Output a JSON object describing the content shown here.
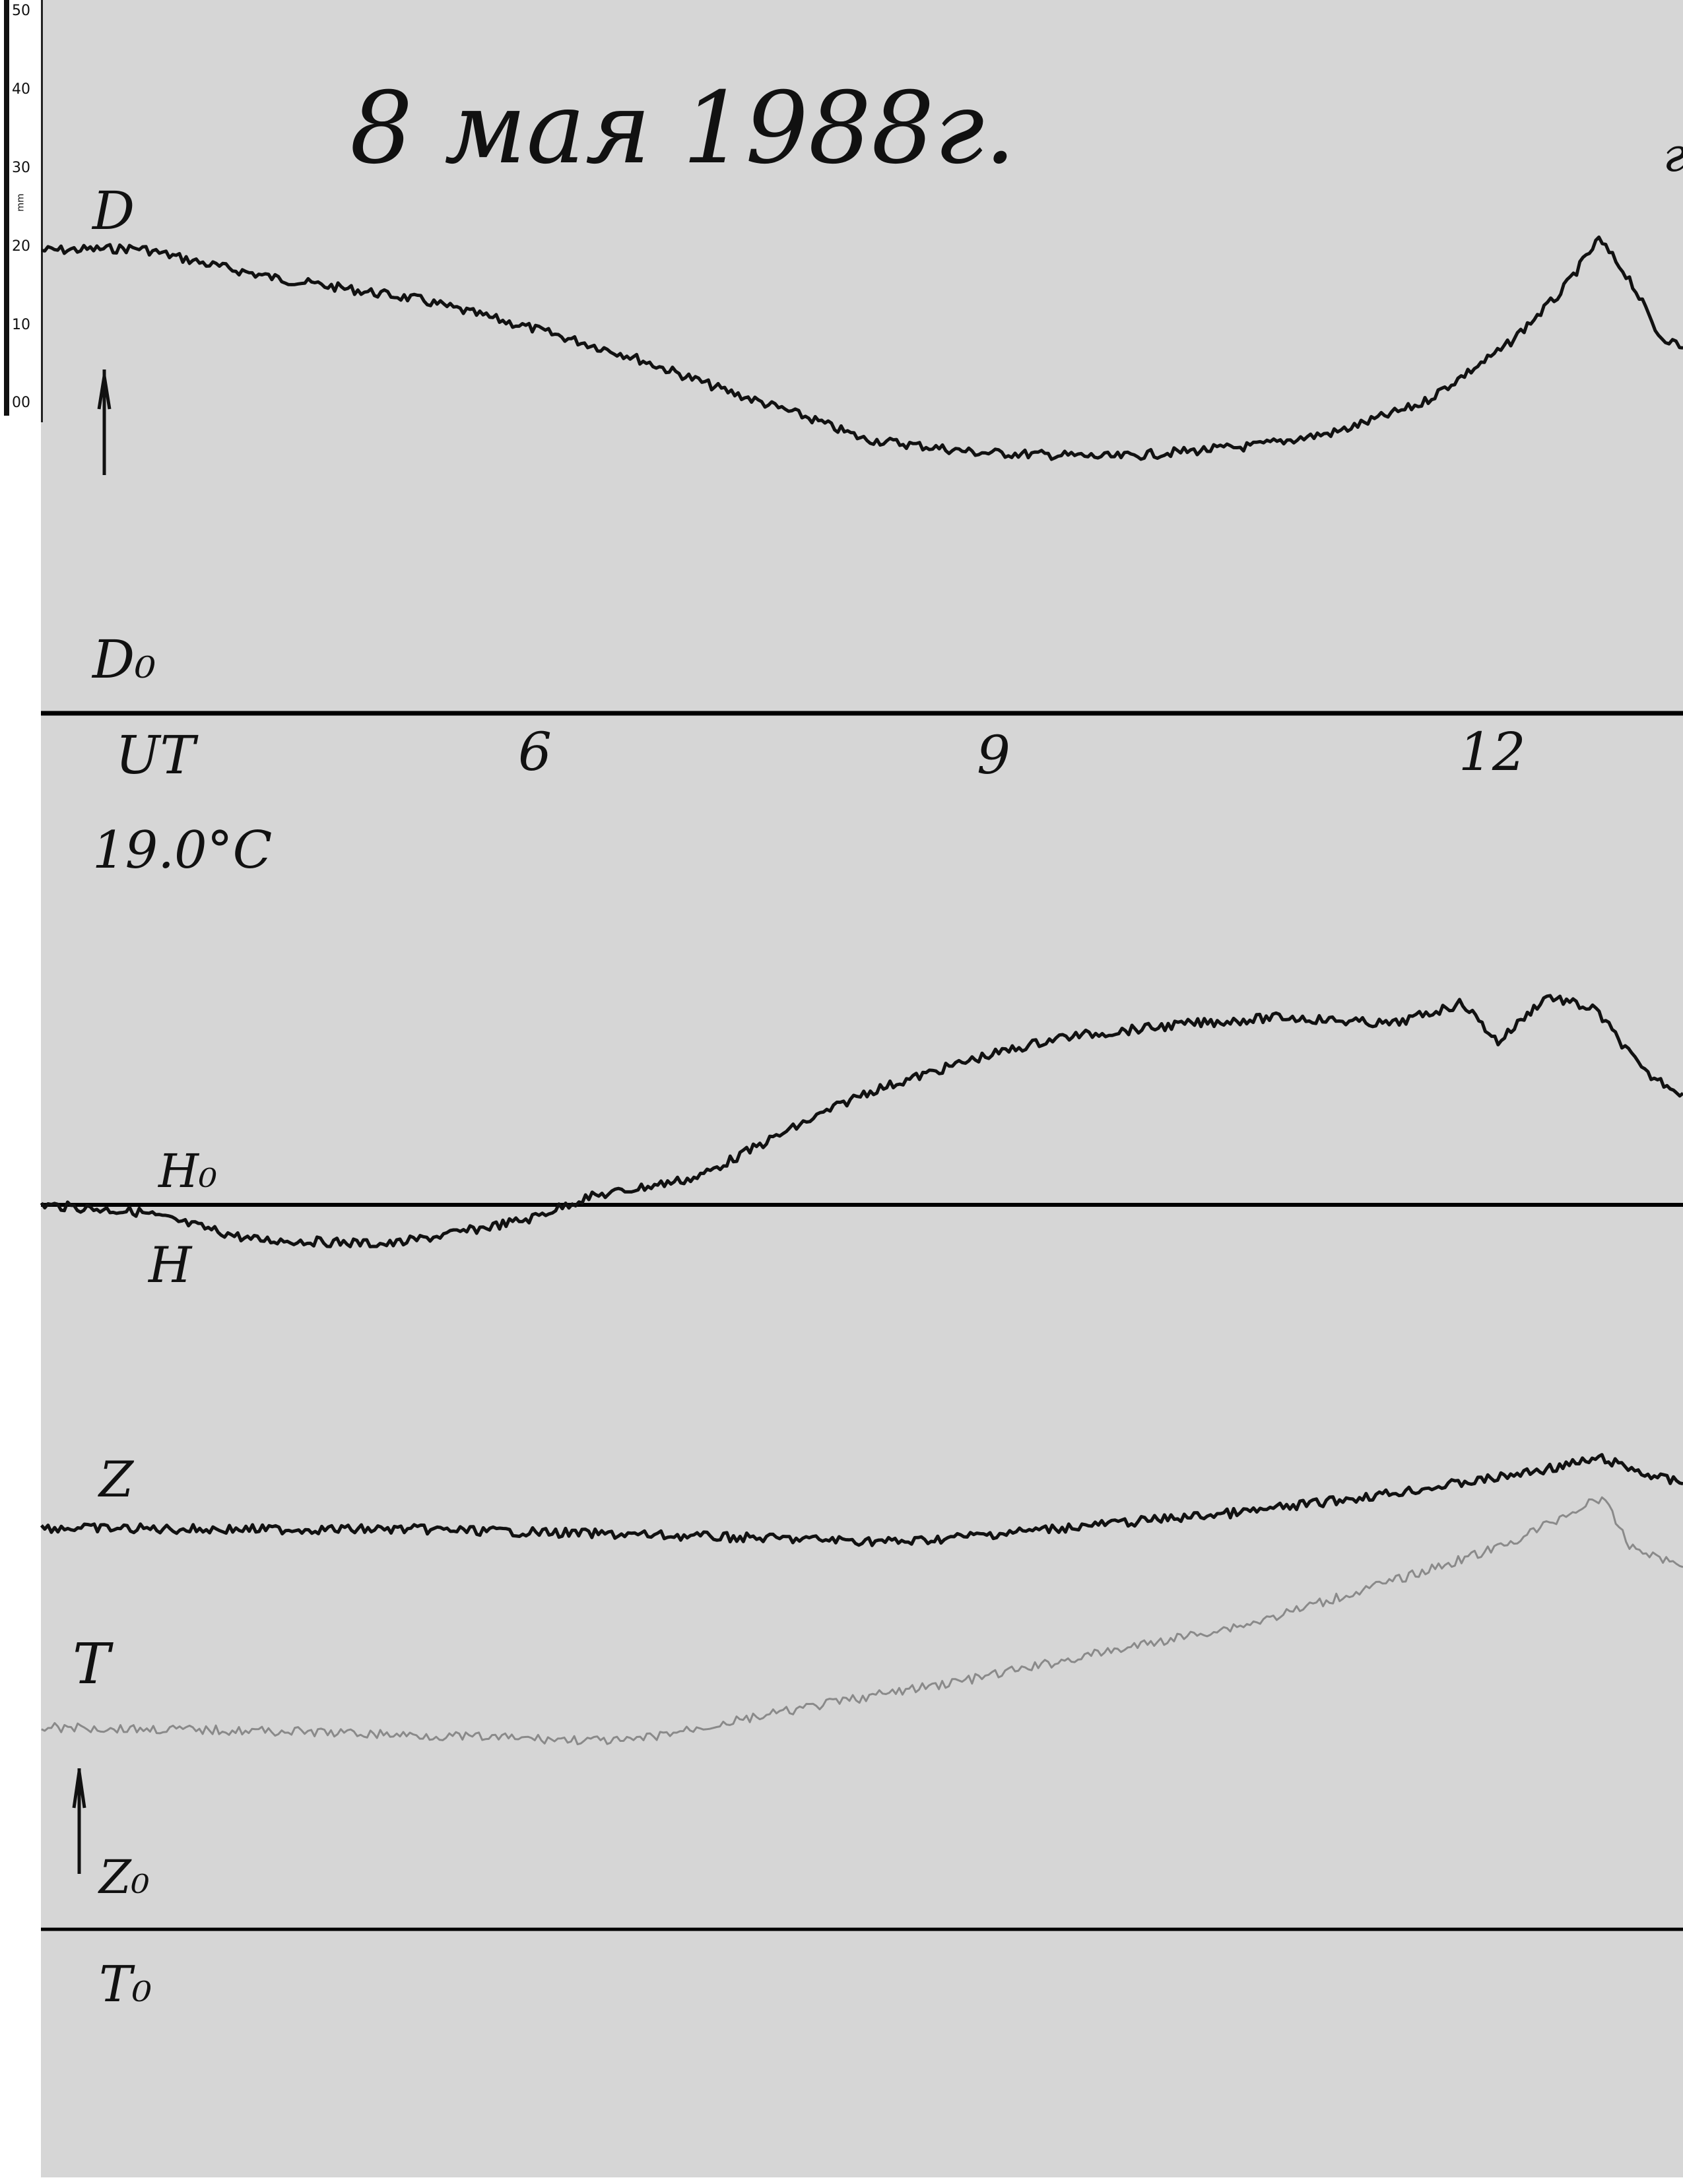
{
  "title": "8 мая 1988г.",
  "ruler": {
    "unit": "mm",
    "ticks": [
      "50",
      "40",
      "30",
      "20",
      "10",
      "00"
    ]
  },
  "colors": {
    "paper": "#d6d6d6",
    "trace": "#111111",
    "temperature_trace": "#8a8a8a",
    "baseline": "#000000"
  },
  "icons": [
    "up-arrow-icon",
    "up-arrow-icon"
  ],
  "labels": {
    "D": "D",
    "D0": "D₀",
    "UT": "UT",
    "temp": "19.0°C",
    "H0": "H₀",
    "H": "H",
    "Z": "Z",
    "T": "T",
    "Z0": "Z₀",
    "T0": "T₀",
    "corner": "г"
  },
  "chart_data": {
    "type": "line",
    "title": "8 мая 1988г.",
    "xlabel": "UT",
    "x_ticks": [
      "6",
      "9",
      "12"
    ],
    "x_tick_values": [
      6,
      9,
      12
    ],
    "xlim": [
      2.78,
      13.52
    ],
    "grid": false,
    "y_units": "mm deflection from baseline",
    "series": [
      {
        "name": "D",
        "baseline": "D₀",
        "x": [
          2.78,
          3.42,
          3.88,
          4.33,
          5.24,
          5.97,
          6.61,
          7.25,
          7.8,
          8.16,
          8.89,
          9.8,
          10.71,
          11.26,
          11.81,
          12.35,
          12.72,
          12.97,
          13.17,
          13.36,
          13.52
        ],
        "y": [
          58.9,
          59.2,
          57.1,
          55.3,
          52.7,
          49.1,
          45.6,
          41.1,
          37.6,
          34.9,
          33.2,
          32.6,
          34.0,
          35.8,
          39.4,
          46.5,
          53.5,
          60.3,
          55.3,
          48.2,
          46.5
        ]
      },
      {
        "name": "H",
        "baseline": "H₀",
        "x": [
          2.78,
          3.42,
          4.15,
          5.06,
          5.52,
          5.97,
          6.34,
          7.07,
          7.61,
          8.16,
          8.89,
          9.44,
          10.26,
          10.9,
          11.62,
          12.08,
          12.31,
          12.63,
          12.95,
          13.27,
          13.52
        ],
        "y": [
          0,
          -0.9,
          -4.4,
          -5.0,
          -3.5,
          -1.8,
          0.9,
          3.5,
          8.9,
          14.2,
          18.6,
          21.3,
          23.0,
          23.9,
          23.0,
          25.7,
          20.7,
          26.6,
          24.8,
          16.8,
          14.2
        ]
      },
      {
        "name": "Z",
        "baseline": "Z₀",
        "x": [
          2.78,
          3.88,
          5.24,
          7.07,
          8.43,
          9.35,
          10.71,
          11.62,
          12.35,
          12.99,
          13.27,
          13.52
        ],
        "y": [
          51.1,
          50.9,
          50.9,
          50.0,
          49.3,
          50.9,
          53.2,
          55.5,
          57.6,
          59.9,
          58.0,
          56.7
        ]
      },
      {
        "name": "T",
        "baseline": "T₀",
        "x": [
          2.78,
          4.33,
          6.61,
          7.98,
          8.89,
          9.8,
          10.71,
          11.62,
          12.35,
          12.99,
          13.17,
          13.52
        ],
        "y": [
          25.7,
          25.2,
          23.9,
          28.9,
          31.9,
          35.5,
          39.0,
          44.3,
          48.8,
          55.0,
          48.8,
          46.1
        ]
      }
    ]
  }
}
